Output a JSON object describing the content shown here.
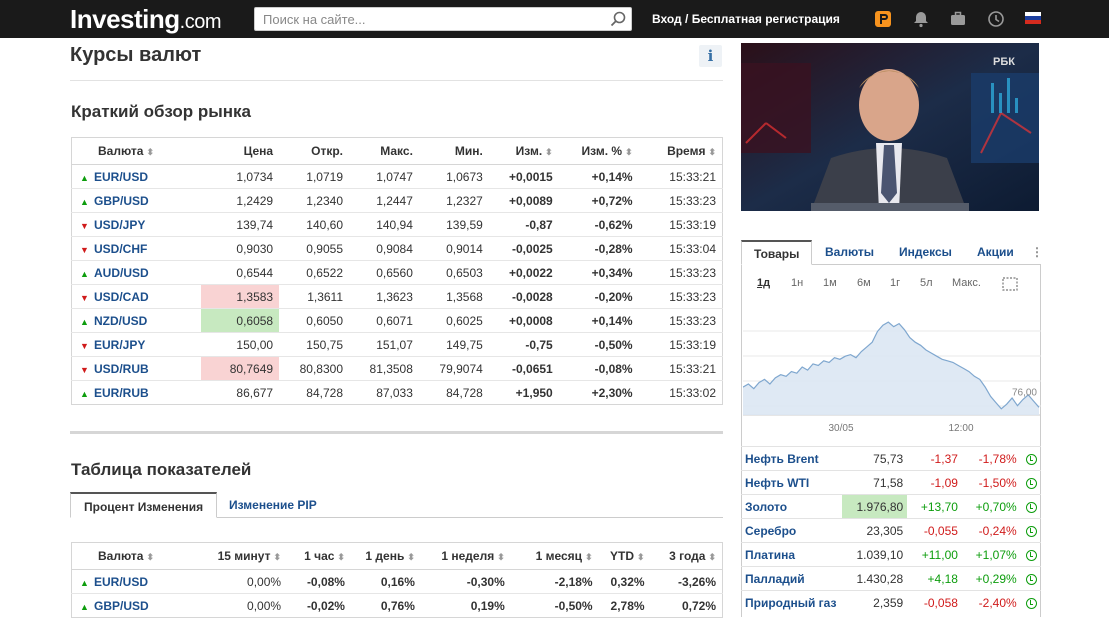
{
  "header": {
    "logo_main": "Investing",
    "logo_suffix": ".com",
    "search_placeholder": "Поиск на сайте...",
    "login": "Вход",
    "divider": "/",
    "register": "Бесплатная регистрация"
  },
  "page": {
    "title": "Курсы валют",
    "info_label": "i"
  },
  "overview": {
    "title": "Краткий обзор рынка",
    "columns": [
      "Валюта",
      "Цена",
      "Откр.",
      "Макс.",
      "Мин.",
      "Изм.",
      "Изм. %",
      "Время"
    ],
    "rows": [
      {
        "dir": "up",
        "pair": "EUR/USD",
        "price": "1,0734",
        "open": "1,0719",
        "high": "1,0747",
        "low": "1,0673",
        "chg": "+0,0015",
        "pct": "+0,14%",
        "time": "15:33:21",
        "hl": ""
      },
      {
        "dir": "up",
        "pair": "GBP/USD",
        "price": "1,2429",
        "open": "1,2340",
        "high": "1,2447",
        "low": "1,2327",
        "chg": "+0,0089",
        "pct": "+0,72%",
        "time": "15:33:23",
        "hl": ""
      },
      {
        "dir": "down",
        "pair": "USD/JPY",
        "price": "139,74",
        "open": "140,60",
        "high": "140,94",
        "low": "139,59",
        "chg": "-0,87",
        "pct": "-0,62%",
        "time": "15:33:19",
        "hl": ""
      },
      {
        "dir": "down",
        "pair": "USD/CHF",
        "price": "0,9030",
        "open": "0,9055",
        "high": "0,9084",
        "low": "0,9014",
        "chg": "-0,0025",
        "pct": "-0,28%",
        "time": "15:33:04",
        "hl": ""
      },
      {
        "dir": "up",
        "pair": "AUD/USD",
        "price": "0,6544",
        "open": "0,6522",
        "high": "0,6560",
        "low": "0,6503",
        "chg": "+0,0022",
        "pct": "+0,34%",
        "time": "15:33:23",
        "hl": ""
      },
      {
        "dir": "down",
        "pair": "USD/CAD",
        "price": "1,3583",
        "open": "1,3611",
        "high": "1,3623",
        "low": "1,3568",
        "chg": "-0,0028",
        "pct": "-0,20%",
        "time": "15:33:23",
        "hl": "red"
      },
      {
        "dir": "up",
        "pair": "NZD/USD",
        "price": "0,6058",
        "open": "0,6050",
        "high": "0,6071",
        "low": "0,6025",
        "chg": "+0,0008",
        "pct": "+0,14%",
        "time": "15:33:23",
        "hl": "green"
      },
      {
        "dir": "down",
        "pair": "EUR/JPY",
        "price": "150,00",
        "open": "150,75",
        "high": "151,07",
        "low": "149,75",
        "chg": "-0,75",
        "pct": "-0,50%",
        "time": "15:33:19",
        "hl": ""
      },
      {
        "dir": "down",
        "pair": "USD/RUB",
        "price": "80,7649",
        "open": "80,8300",
        "high": "81,3508",
        "low": "79,9074",
        "chg": "-0,0651",
        "pct": "-0,08%",
        "time": "15:33:21",
        "hl": "red"
      },
      {
        "dir": "up",
        "pair": "EUR/RUB",
        "price": "86,677",
        "open": "84,728",
        "high": "87,033",
        "low": "84,728",
        "chg": "+1,950",
        "pct": "+2,30%",
        "time": "15:33:02",
        "hl": ""
      }
    ]
  },
  "performance": {
    "title": "Таблица показателей",
    "tabs": [
      "Процент Изменения",
      "Изменение PIP"
    ],
    "columns": [
      "Валюта",
      "15 минут",
      "1 час",
      "1 день",
      "1 неделя",
      "1 месяц",
      "YTD",
      "3 года"
    ],
    "rows": [
      {
        "dir": "up",
        "pair": "EUR/USD",
        "vals": [
          "0,00%",
          "-0,08%",
          "0,16%",
          "-0,30%",
          "-2,18%",
          "0,32%",
          "-3,26%"
        ]
      },
      {
        "dir": "up",
        "pair": "GBP/USD",
        "vals": [
          "0,00%",
          "-0,02%",
          "0,76%",
          "0,19%",
          "-0,50%",
          "2,78%",
          "0,72%"
        ]
      }
    ]
  },
  "video": {
    "channel": "РБК"
  },
  "commodities": {
    "tabs": [
      "Товары",
      "Валюты",
      "Индексы",
      "Акции"
    ],
    "more_label": "⋮",
    "periods": [
      "1д",
      "1н",
      "1м",
      "6м",
      "1г",
      "5л",
      "Макс."
    ],
    "chart_last_label": "76,00",
    "chart_x_labels": [
      "30/05",
      "12:00"
    ],
    "rows": [
      {
        "name": "Нефть Brent",
        "price": "75,73",
        "chg": "-1,37",
        "pct": "-1,78%",
        "hl": ""
      },
      {
        "name": "Нефть WTI",
        "price": "71,58",
        "chg": "-1,09",
        "pct": "-1,50%",
        "hl": ""
      },
      {
        "name": "Золото",
        "price": "1.976,80",
        "chg": "+13,70",
        "pct": "+0,70%",
        "hl": "green"
      },
      {
        "name": "Серебро",
        "price": "23,305",
        "chg": "-0,055",
        "pct": "-0,24%",
        "hl": ""
      },
      {
        "name": "Платина",
        "price": "1.039,10",
        "chg": "+11,00",
        "pct": "+1,07%",
        "hl": ""
      },
      {
        "name": "Палладий",
        "price": "1.430,28",
        "chg": "+4,18",
        "pct": "+0,29%",
        "hl": ""
      },
      {
        "name": "Природный газ",
        "price": "2,359",
        "chg": "-0,058",
        "pct": "-2,40%",
        "hl": ""
      }
    ]
  },
  "chart_data": {
    "type": "area",
    "x_labels": [
      "30/05",
      "12:00"
    ],
    "values": [
      73.6,
      73.8,
      73.5,
      73.9,
      74.1,
      73.8,
      74.2,
      74.4,
      74.3,
      74.6,
      74.5,
      74.9,
      74.7,
      75.1,
      75.0,
      75.3,
      75.2,
      75.5,
      75.4,
      75.6,
      75.7,
      75.5,
      75.9,
      76.2,
      76.5,
      77.2,
      77.6,
      77.8,
      77.5,
      77.7,
      77.3,
      76.8,
      76.5,
      76.3,
      76.0,
      75.8,
      75.6,
      75.4,
      75.3,
      75.2,
      75.0,
      74.8,
      74.6,
      74.3,
      74.1,
      73.6,
      73.0,
      72.6,
      72.2,
      72.5,
      72.9,
      72.4,
      72.8,
      73.1,
      72.7,
      72.3
    ],
    "last_label": "76,00",
    "grid": true
  }
}
